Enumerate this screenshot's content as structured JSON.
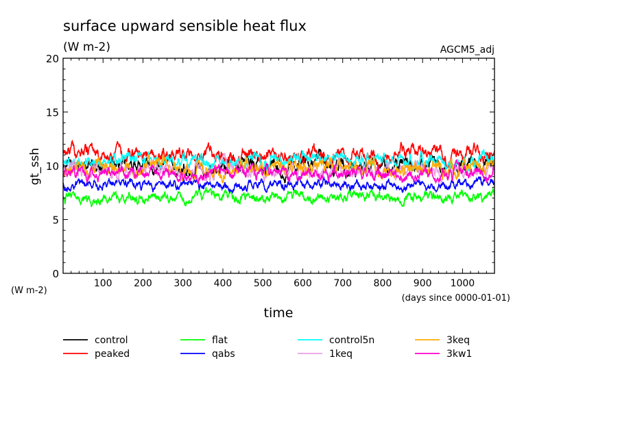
{
  "chart_data": {
    "type": "line",
    "title": "surface upward sensible heat flux",
    "subtitle": "(W m-2)",
    "tag": "AGCM5_adj",
    "ylabel": "gt_ssh",
    "yunits": "(W m-2)",
    "xlabel": "time",
    "xunits": "(days since 0000-01-01)",
    "xlim": [
      0,
      1080
    ],
    "ylim": [
      0,
      20
    ],
    "x_ticks": [
      100,
      200,
      300,
      400,
      500,
      600,
      700,
      800,
      900,
      1000
    ],
    "y_ticks": [
      0,
      5,
      10,
      15,
      20
    ],
    "x_tick_labels": [
      "100",
      "200",
      "300",
      "400",
      "500",
      "600",
      "700",
      "800",
      "900",
      "1000"
    ],
    "y_tick_labels": [
      "0",
      "5",
      "10",
      "15",
      "20"
    ],
    "legend_placement": "bottom",
    "grid": false,
    "series": [
      {
        "name": "control",
        "color": "#000000",
        "mean": 10.0,
        "amp": 1.1
      },
      {
        "name": "peaked",
        "color": "#ff0000",
        "mean": 11.0,
        "amp": 1.1
      },
      {
        "name": "flat",
        "color": "#00ff00",
        "mean": 7.0,
        "amp": 0.8
      },
      {
        "name": "qabs",
        "color": "#0000ff",
        "mean": 8.2,
        "amp": 0.7
      },
      {
        "name": "control5n",
        "color": "#00ffff",
        "mean": 10.4,
        "amp": 1.0
      },
      {
        "name": "1keq",
        "color": "#e8a0e0",
        "mean": 9.5,
        "amp": 1.0
      },
      {
        "name": "3keq",
        "color": "#ffaa00",
        "mean": 9.8,
        "amp": 1.1
      },
      {
        "name": "3kw1",
        "color": "#ff00cc",
        "mean": 9.3,
        "amp": 0.9
      }
    ]
  }
}
